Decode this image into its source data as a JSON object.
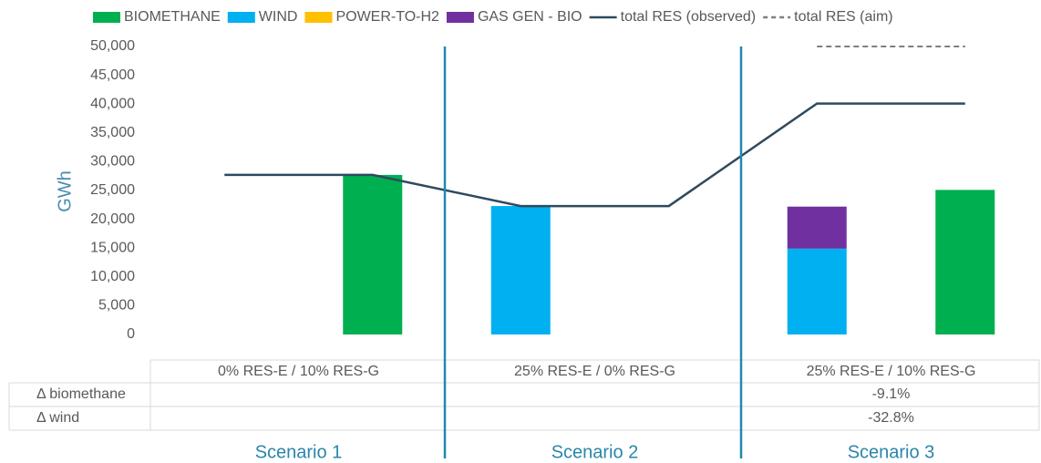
{
  "chart_data": {
    "type": "bar",
    "stacked": true,
    "ylabel": "GWh",
    "categories": [
      null,
      null,
      null,
      null,
      null,
      null
    ],
    "series": [
      {
        "name": "BIOMETHANE",
        "color": "#00b050",
        "values": [
          null,
          27700,
          null,
          null,
          null,
          25100
        ]
      },
      {
        "name": "WIND",
        "color": "#00b0f0",
        "values": [
          null,
          null,
          22300,
          null,
          14900,
          null
        ]
      },
      {
        "name": "POWER-TO-H2",
        "color": "#ffc000",
        "values": [
          null,
          null,
          null,
          null,
          null,
          null
        ]
      },
      {
        "name": "GAS GEN - BIO",
        "color": "#7030a0",
        "values": [
          null,
          null,
          null,
          null,
          7300,
          null
        ]
      },
      {
        "name": "total RES (observed)",
        "type": "line",
        "color": "#2e4a5e",
        "values": [
          27700,
          27700,
          22300,
          22300,
          40100,
          40100
        ]
      },
      {
        "name": "total RES (aim)",
        "type": "line",
        "dashed": true,
        "color": "#7f7f7f",
        "values": [
          null,
          null,
          null,
          null,
          50000,
          50000
        ]
      }
    ],
    "ylim": [
      0,
      50000
    ],
    "yticks": [
      0,
      {
        "value": 5000,
        "label": "5,000"
      },
      {
        "value": 10000,
        "label": "10,000"
      },
      {
        "value": 15000,
        "label": "15,000"
      },
      {
        "value": 20000,
        "label": "20,000"
      },
      {
        "value": 25000,
        "label": "25,000"
      },
      {
        "value": 30000,
        "label": "30,000"
      },
      {
        "value": 35000,
        "label": "35,000"
      },
      {
        "value": 40000,
        "label": "40,000"
      },
      {
        "value": 45000,
        "label": "45,000"
      },
      {
        "value": 50000,
        "label": "50,000"
      }
    ],
    "groups": [
      "0% RES-E / 10% RES-G",
      "25% RES-E / 0% RES-G",
      "25% RES-E / 10% RES-G"
    ],
    "table": [
      {
        "label": "Δ biomethane",
        "cells": [
          null,
          null,
          "-9.1%"
        ]
      },
      {
        "label": "Δ wind",
        "cells": [
          null,
          null,
          "-32.8%"
        ]
      }
    ],
    "scenarios": [
      "Scenario 1",
      "Scenario 2",
      "Scenario 3"
    ]
  }
}
